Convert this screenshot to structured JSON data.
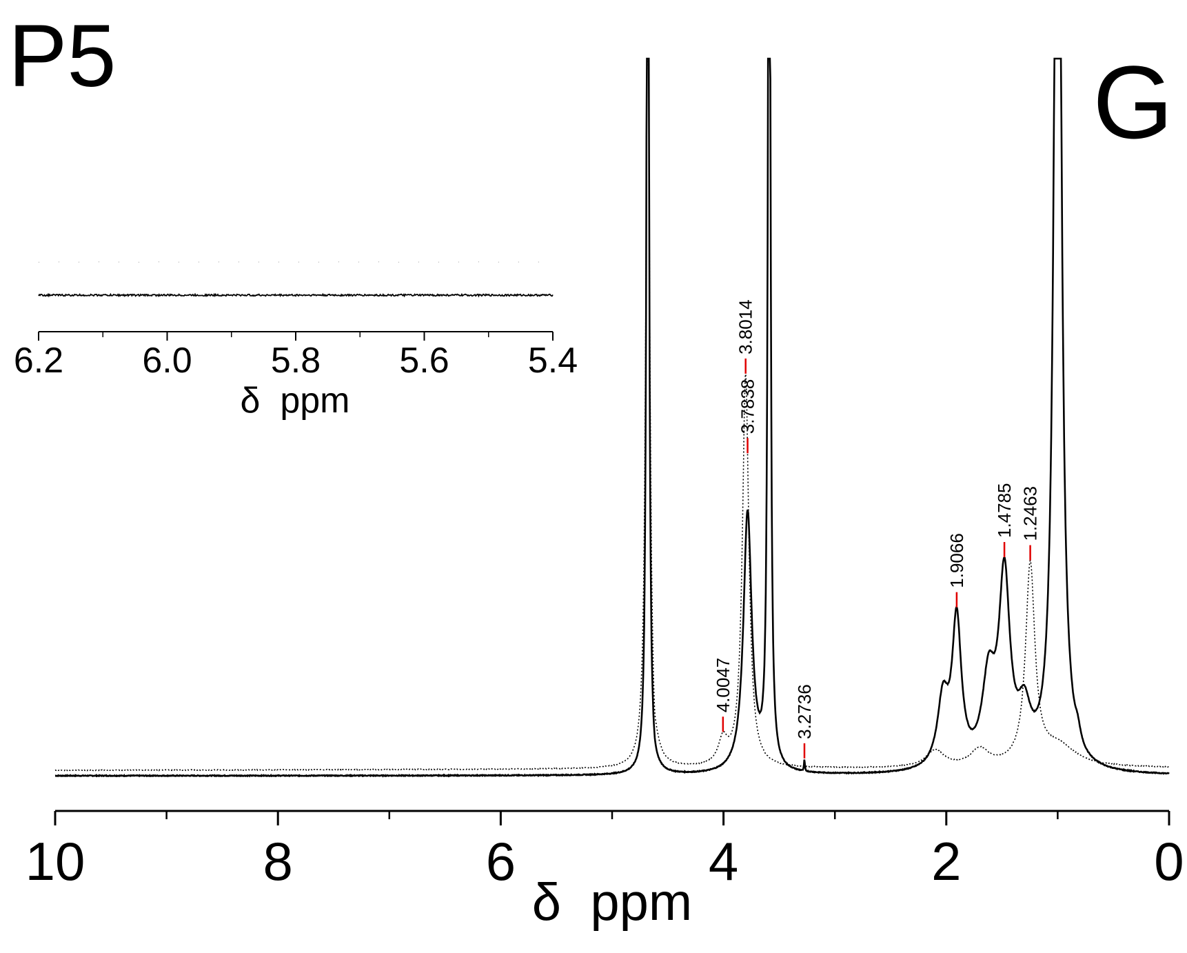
{
  "panel": {
    "label": "P5",
    "tag": "G"
  },
  "chart_data": [
    {
      "type": "line",
      "xlabel": "δ  ppm",
      "xlim": [
        10,
        0
      ],
      "x_reversed": true,
      "xticks": [
        10,
        8,
        6,
        4,
        2,
        0
      ],
      "xticks_minor": [
        9,
        7,
        5,
        3,
        1
      ],
      "ylim": [
        0,
        1
      ],
      "y_axis_shown": false,
      "grid": false,
      "series": [
        {
          "style": "solid",
          "color": "#000000",
          "baseline": 0.0,
          "peaks": [
            {
              "x": 4.68,
              "height": 3.0,
              "width": 0.012
            },
            {
              "x": 4.62,
              "height": -0.015,
              "width": 0.02
            },
            {
              "x": 3.7838,
              "height": 0.63,
              "width": 0.045
            },
            {
              "x": 3.59,
              "height": 3.0,
              "width": 0.012
            },
            {
              "x": 3.2736,
              "height": 0.03,
              "width": 0.004
            },
            {
              "x": 2.03,
              "height": 0.16,
              "width": 0.06
            },
            {
              "x": 1.9066,
              "height": 0.35,
              "width": 0.05
            },
            {
              "x": 1.62,
              "height": 0.2,
              "width": 0.07
            },
            {
              "x": 1.4785,
              "height": 0.45,
              "width": 0.06
            },
            {
              "x": 1.3,
              "height": 0.12,
              "width": 0.07
            },
            {
              "x": 1.0,
              "height": 3.0,
              "width": 0.035
            },
            {
              "x": 0.82,
              "height": 0.03,
              "width": 0.03
            }
          ]
        },
        {
          "style": "dotted",
          "color": "#000000",
          "baseline": 0.013,
          "peaks": [
            {
              "x": 4.68,
              "height": 2.0,
              "width": 0.02
            },
            {
              "x": 4.62,
              "height": -0.05,
              "width": 0.015
            },
            {
              "x": 4.0047,
              "height": 0.06,
              "width": 0.05
            },
            {
              "x": 3.8014,
              "height": 0.95,
              "width": 0.035
            },
            {
              "x": 2.1,
              "height": 0.04,
              "width": 0.1
            },
            {
              "x": 1.7,
              "height": 0.04,
              "width": 0.1
            },
            {
              "x": 1.2463,
              "height": 0.48,
              "width": 0.05
            },
            {
              "x": 1.0,
              "height": 0.05,
              "width": 0.2
            }
          ]
        }
      ],
      "peak_labels": [
        "4.0047",
        "3.8014",
        "3.7838",
        "3.2736",
        "1.9066",
        "1.4785",
        "1.2463"
      ],
      "peak_label_positions": [
        4.0047,
        3.8014,
        3.7838,
        3.2736,
        1.9066,
        1.4785,
        1.2463
      ],
      "peak_marker_color": "#e00000"
    },
    {
      "type": "line",
      "role": "inset",
      "xlabel": "δ  ppm",
      "xlim": [
        6.2,
        5.4
      ],
      "x_reversed": true,
      "xticks": [
        "6.2",
        "6.0",
        "5.8",
        "5.6",
        "5.4"
      ],
      "xtick_values": [
        6.2,
        6.0,
        5.8,
        5.6,
        5.4
      ],
      "xticks_minor": [
        6.1,
        5.9,
        5.7,
        5.5
      ],
      "series": [
        {
          "style": "solid",
          "color": "#000000",
          "description_level": 0.0,
          "noise_amplitude": 0.004
        },
        {
          "style": "dotted",
          "color": "#000000",
          "description_level": 0.15,
          "noise_amplitude": 0.001
        }
      ]
    }
  ]
}
